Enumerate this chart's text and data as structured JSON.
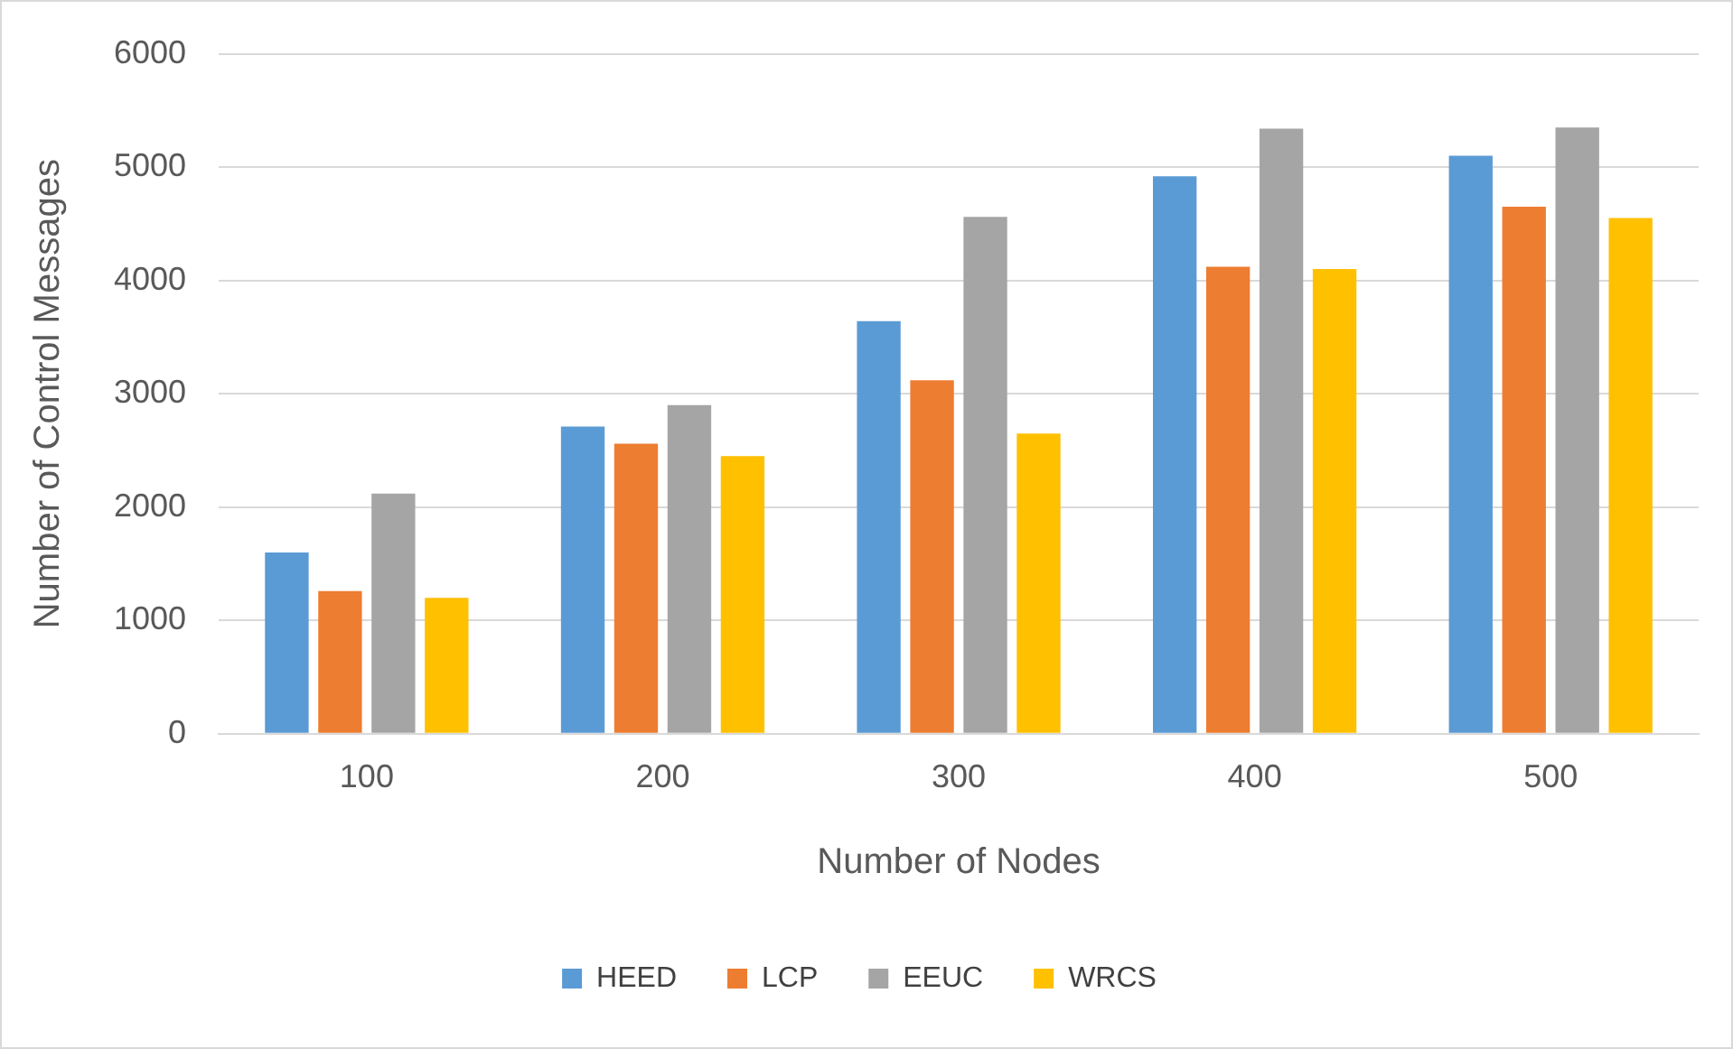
{
  "chart_data": {
    "type": "bar",
    "xlabel": "Number of Nodes",
    "ylabel": "Number of Control Messages",
    "categories": [
      "100",
      "200",
      "300",
      "400",
      "500"
    ],
    "series": [
      {
        "name": "HEED",
        "color": "#5b9bd5",
        "values": [
          1600,
          2710,
          3640,
          4920,
          5100
        ]
      },
      {
        "name": "LCP",
        "color": "#ed7d31",
        "values": [
          1260,
          2560,
          3120,
          4120,
          4650
        ]
      },
      {
        "name": "EEUC",
        "color": "#a5a5a5",
        "values": [
          2120,
          2900,
          4560,
          5340,
          5350
        ]
      },
      {
        "name": "WRCS",
        "color": "#ffc000",
        "values": [
          1200,
          2450,
          2650,
          4100,
          4550
        ]
      }
    ],
    "ylim": [
      0,
      6000
    ],
    "yticks": [
      0,
      1000,
      2000,
      3000,
      4000,
      5000,
      6000
    ],
    "grid": "y",
    "legend": "bottom"
  }
}
